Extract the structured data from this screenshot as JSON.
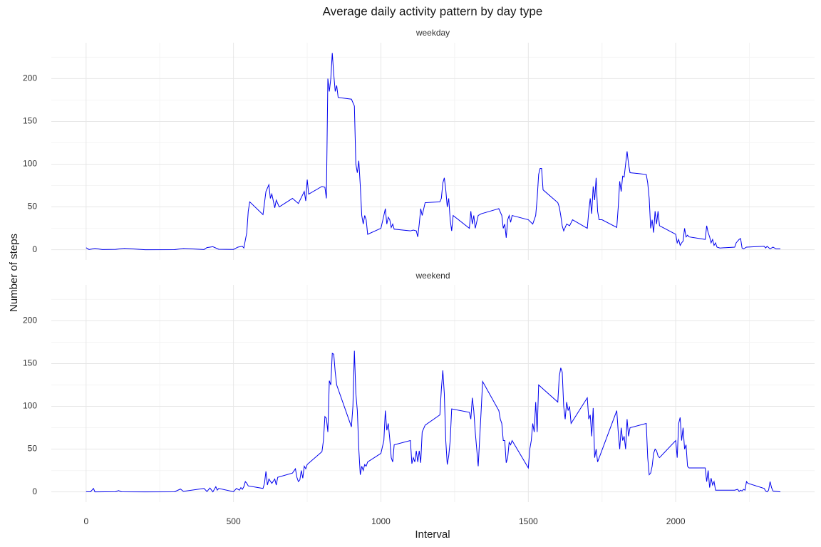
{
  "title": "Average daily activity pattern by day type",
  "x_label": "Interval",
  "y_label": "Number of steps",
  "chart_data": [
    {
      "type": "line",
      "title": "weekday",
      "color": "#0000ee",
      "grid": true,
      "xlim": [
        -118,
        2471
      ],
      "xticks": [
        0,
        500,
        1000,
        1500,
        2000
      ],
      "ylim": [
        -12,
        242
      ],
      "yticks": [
        0,
        50,
        100,
        150,
        200
      ],
      "x": [
        0,
        10,
        30,
        55,
        100,
        130,
        200,
        300,
        330,
        400,
        410,
        430,
        450,
        500,
        515,
        530,
        535,
        545,
        550,
        555,
        600,
        610,
        620,
        625,
        630,
        640,
        645,
        655,
        700,
        720,
        740,
        745,
        750,
        755,
        800,
        810,
        815,
        820,
        825,
        830,
        835,
        840,
        845,
        850,
        855,
        900,
        910,
        915,
        920,
        925,
        930,
        935,
        940,
        945,
        950,
        955,
        1000,
        1010,
        1015,
        1020,
        1025,
        1030,
        1035,
        1040,
        1045,
        1100,
        1110,
        1120,
        1125,
        1130,
        1135,
        1140,
        1150,
        1200,
        1205,
        1210,
        1215,
        1220,
        1225,
        1230,
        1235,
        1240,
        1245,
        1300,
        1305,
        1310,
        1315,
        1320,
        1330,
        1340,
        1400,
        1410,
        1415,
        1420,
        1425,
        1430,
        1435,
        1440,
        1445,
        1500,
        1515,
        1525,
        1530,
        1535,
        1540,
        1545,
        1550,
        1600,
        1605,
        1610,
        1615,
        1620,
        1630,
        1640,
        1650,
        1700,
        1705,
        1710,
        1715,
        1720,
        1725,
        1730,
        1735,
        1740,
        1750,
        1800,
        1805,
        1810,
        1815,
        1820,
        1825,
        1830,
        1835,
        1840,
        1845,
        1900,
        1905,
        1910,
        1915,
        1920,
        1925,
        1930,
        1935,
        1940,
        1945,
        2000,
        2005,
        2010,
        2015,
        2020,
        2025,
        2030,
        2035,
        2040,
        2045,
        2100,
        2105,
        2110,
        2115,
        2120,
        2125,
        2130,
        2135,
        2140,
        2150,
        2200,
        2205,
        2215,
        2220,
        2225,
        2230,
        2240,
        2300,
        2305,
        2310,
        2320,
        2330,
        2340,
        2355
      ],
      "values": [
        2.3,
        0.2,
        1.5,
        0.2,
        0.4,
        1.6,
        0,
        0.1,
        1.5,
        0.2,
        2.5,
        3.5,
        0.5,
        0.3,
        3,
        4,
        2,
        20,
        45,
        56,
        41,
        68,
        76,
        60,
        65,
        49,
        58,
        50,
        60,
        54,
        68,
        57,
        82,
        65,
        74,
        73,
        60,
        200,
        185,
        200,
        230,
        205,
        185,
        192,
        178,
        176,
        168,
        100,
        90,
        104,
        75,
        40,
        30,
        40,
        35,
        18,
        25,
        40,
        48,
        30,
        38,
        35,
        26,
        30,
        24,
        22,
        23,
        22,
        15,
        30,
        48,
        40,
        55,
        56,
        60,
        78,
        84,
        70,
        50,
        60,
        35,
        22,
        40,
        25,
        45,
        30,
        40,
        25,
        40,
        42,
        48,
        40,
        25,
        30,
        14,
        35,
        40,
        32,
        40,
        35,
        30,
        40,
        60,
        88,
        95,
        95,
        70,
        55,
        50,
        40,
        28,
        22,
        30,
        28,
        35,
        25,
        45,
        60,
        42,
        74,
        58,
        84,
        45,
        35,
        35,
        26,
        50,
        80,
        68,
        86,
        85,
        100,
        115,
        100,
        90,
        88,
        78,
        60,
        25,
        35,
        20,
        45,
        30,
        45,
        28,
        18,
        8,
        12,
        5,
        8,
        10,
        25,
        15,
        17,
        15,
        12,
        28,
        20,
        15,
        8,
        12,
        5,
        8,
        3,
        2,
        3,
        8,
        12,
        13,
        2,
        1,
        3,
        4,
        2,
        4,
        1,
        3,
        1,
        1
      ]
    },
    {
      "type": "line",
      "title": "weekend",
      "color": "#0000ee",
      "grid": true,
      "xlim": [
        -118,
        2471
      ],
      "xticks": [
        0,
        500,
        1000,
        1500,
        2000
      ],
      "ylim": [
        -12,
        242
      ],
      "yticks": [
        0,
        50,
        100,
        150,
        200
      ],
      "x": [
        0,
        15,
        25,
        30,
        100,
        110,
        120,
        200,
        300,
        320,
        330,
        400,
        410,
        420,
        430,
        440,
        445,
        450,
        500,
        510,
        520,
        525,
        530,
        535,
        540,
        545,
        550,
        600,
        605,
        610,
        615,
        620,
        630,
        640,
        645,
        650,
        700,
        710,
        715,
        720,
        725,
        730,
        735,
        740,
        745,
        750,
        800,
        805,
        810,
        815,
        820,
        825,
        830,
        835,
        840,
        845,
        850,
        900,
        905,
        910,
        915,
        920,
        925,
        930,
        935,
        940,
        945,
        950,
        955,
        1000,
        1010,
        1015,
        1020,
        1025,
        1030,
        1035,
        1040,
        1045,
        1100,
        1105,
        1110,
        1115,
        1120,
        1125,
        1130,
        1135,
        1140,
        1150,
        1200,
        1205,
        1210,
        1215,
        1220,
        1225,
        1230,
        1235,
        1240,
        1300,
        1305,
        1310,
        1315,
        1320,
        1325,
        1330,
        1340,
        1345,
        1400,
        1405,
        1410,
        1415,
        1420,
        1425,
        1430,
        1435,
        1440,
        1445,
        1500,
        1505,
        1510,
        1515,
        1520,
        1525,
        1530,
        1535,
        1600,
        1605,
        1610,
        1615,
        1620,
        1625,
        1630,
        1635,
        1640,
        1645,
        1700,
        1705,
        1710,
        1715,
        1720,
        1725,
        1730,
        1735,
        1800,
        1805,
        1810,
        1815,
        1820,
        1825,
        1830,
        1835,
        1840,
        1845,
        1900,
        1905,
        1910,
        1915,
        1920,
        1925,
        1930,
        1935,
        1940,
        1945,
        2000,
        2005,
        2010,
        2015,
        2020,
        2025,
        2030,
        2035,
        2040,
        2045,
        2100,
        2105,
        2110,
        2115,
        2120,
        2125,
        2130,
        2135,
        2140,
        2200,
        2210,
        2215,
        2220,
        2225,
        2230,
        2235,
        2240,
        2245,
        2300,
        2305,
        2310,
        2315,
        2320,
        2325,
        2330,
        2355
      ],
      "values": [
        0.2,
        0.1,
        4,
        0,
        0.2,
        1.5,
        0.1,
        0,
        0.1,
        3.3,
        0.6,
        4,
        0.4,
        4.5,
        0,
        6,
        2,
        4,
        0.2,
        4,
        2,
        5,
        3,
        6,
        12,
        10,
        7,
        4,
        10,
        24,
        8,
        15,
        10,
        15,
        8,
        17,
        22,
        27,
        17,
        12,
        14,
        25,
        16,
        30,
        27,
        32,
        47,
        60,
        88,
        86,
        70,
        130,
        125,
        162,
        161,
        140,
        125,
        76,
        100,
        165,
        115,
        95,
        50,
        20,
        30,
        25,
        32,
        30,
        35,
        45,
        60,
        95,
        72,
        80,
        62,
        40,
        35,
        55,
        60,
        33,
        40,
        35,
        48,
        35,
        48,
        34,
        70,
        78,
        90,
        120,
        142,
        115,
        60,
        32,
        42,
        60,
        97,
        93,
        85,
        110,
        95,
        70,
        50,
        30,
        95,
        129,
        95,
        85,
        80,
        60,
        60,
        34,
        40,
        58,
        55,
        60,
        28,
        50,
        60,
        80,
        70,
        105,
        70,
        125,
        105,
        135,
        145,
        140,
        100,
        85,
        105,
        95,
        100,
        80,
        110,
        85,
        90,
        65,
        98,
        40,
        50,
        35,
        95,
        70,
        50,
        75,
        60,
        65,
        50,
        85,
        65,
        75,
        80,
        40,
        20,
        22,
        30,
        45,
        50,
        48,
        42,
        40,
        60,
        40,
        80,
        87,
        60,
        75,
        50,
        55,
        30,
        28,
        28,
        12,
        25,
        5,
        16,
        8,
        12,
        2,
        2,
        2,
        3,
        0.5,
        2,
        1,
        3,
        2,
        12,
        10,
        4,
        1,
        0,
        2,
        12,
        5,
        1,
        0
      ]
    }
  ]
}
